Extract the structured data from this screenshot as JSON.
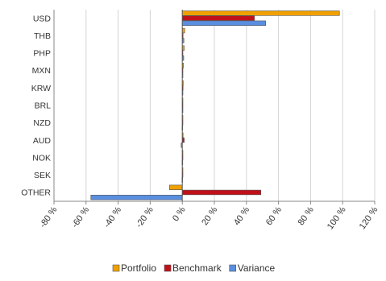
{
  "chart_data": {
    "type": "bar",
    "orientation": "horizontal",
    "categories": [
      "USD",
      "THB",
      "PHP",
      "MXN",
      "KRW",
      "BRL",
      "NZD",
      "AUD",
      "NOK",
      "SEK",
      "OTHER"
    ],
    "series": [
      {
        "name": "Portfolio",
        "color": "#f0a000",
        "values": [
          98,
          1.5,
          1.2,
          0.8,
          0.6,
          0.3,
          0.2,
          0.5,
          0.2,
          0.1,
          -8
        ]
      },
      {
        "name": "Benchmark",
        "color": "#c0101a",
        "values": [
          45,
          0.5,
          0.3,
          0.4,
          0.5,
          0.3,
          0.3,
          1.2,
          0.3,
          0.3,
          49
        ]
      },
      {
        "name": "Variance",
        "color": "#5a8ee0",
        "values": [
          52,
          1.0,
          0.9,
          0.4,
          0.1,
          0.0,
          -0.1,
          -0.7,
          -0.1,
          -0.2,
          -57
        ]
      }
    ],
    "xlim": [
      -80,
      120
    ],
    "x_ticks": [
      -80,
      -60,
      -40,
      -20,
      0,
      20,
      40,
      60,
      80,
      100,
      120
    ],
    "x_tick_suffix": " %",
    "grid": true,
    "legend_position": "bottom"
  }
}
